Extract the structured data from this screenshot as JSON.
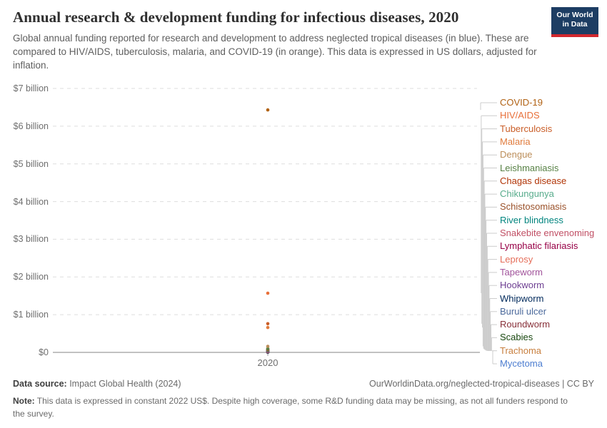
{
  "header": {
    "title": "Annual research & development funding for infectious diseases, 2020",
    "subtitle": "Global annual funding reported for research and development to address neglected tropical diseases (in blue). These are compared to HIV/AIDS, tuberculosis, malaria, and COVID-19 (in orange). This data is expressed in US dollars, adjusted for inflation.",
    "logo": {
      "line1": "Our World",
      "line2": "in Data"
    }
  },
  "chart_data": {
    "type": "scatter",
    "title": "Annual research & development funding for infectious diseases, 2020",
    "x": [
      2020
    ],
    "x_tick_label": "2020",
    "xlabel": "",
    "ylabel": "",
    "ylim": [
      0,
      7
    ],
    "y_ticks": [
      "$0",
      "$1 billion",
      "$2 billion",
      "$3 billion",
      "$4 billion",
      "$5 billion",
      "$6 billion",
      "$7 billion"
    ],
    "grid": true,
    "legend_position": "right",
    "series": [
      {
        "name": "COVID-19",
        "color": "#B16214",
        "value_billion": 6.43
      },
      {
        "name": "HIV/AIDS",
        "color": "#E8703A",
        "value_billion": 1.57
      },
      {
        "name": "Tuberculosis",
        "color": "#CA5E28",
        "value_billion": 0.76
      },
      {
        "name": "Malaria",
        "color": "#E07B3C",
        "value_billion": 0.66
      },
      {
        "name": "Dengue",
        "color": "#BC8E5A",
        "value_billion": 0.16
      },
      {
        "name": "Leishmaniasis",
        "color": "#578145",
        "value_billion": 0.1
      },
      {
        "name": "Chagas disease",
        "color": "#B13507",
        "value_billion": 0.085
      },
      {
        "name": "Chikungunya",
        "color": "#58AC8C",
        "value_billion": 0.07
      },
      {
        "name": "Schistosomiasis",
        "color": "#9A5129",
        "value_billion": 0.06
      },
      {
        "name": "River blindness",
        "color": "#00847E",
        "value_billion": 0.05
      },
      {
        "name": "Snakebite envenoming",
        "color": "#C15065",
        "value_billion": 0.045
      },
      {
        "name": "Lymphatic filariasis",
        "color": "#970046",
        "value_billion": 0.04
      },
      {
        "name": "Leprosy",
        "color": "#E56E5A",
        "value_billion": 0.03
      },
      {
        "name": "Tapeworm",
        "color": "#A2559C",
        "value_billion": 0.025
      },
      {
        "name": "Hookworm",
        "color": "#6D3E91",
        "value_billion": 0.02
      },
      {
        "name": "Whipworm",
        "color": "#00295B",
        "value_billion": 0.015
      },
      {
        "name": "Buruli ulcer",
        "color": "#4C6A9C",
        "value_billion": 0.012
      },
      {
        "name": "Roundworm",
        "color": "#883039",
        "value_billion": 0.01
      },
      {
        "name": "Scabies",
        "color": "#18470F",
        "value_billion": 0.008
      },
      {
        "name": "Trachoma",
        "color": "#C77E3D",
        "value_billion": 0.005
      },
      {
        "name": "Mycetoma",
        "color": "#4C7DD0",
        "value_billion": 0.002
      }
    ]
  },
  "footer": {
    "source_label": "Data source:",
    "source_text": " Impact Global Health (2024)",
    "link": "OurWorldinData.org/neglected-tropical-diseases | CC BY",
    "note_label": "Note:",
    "note_text": " This data is expressed in constant 2022 US$. Despite high coverage, some R&D funding data may be missing, as not all funders respond to the survey."
  }
}
